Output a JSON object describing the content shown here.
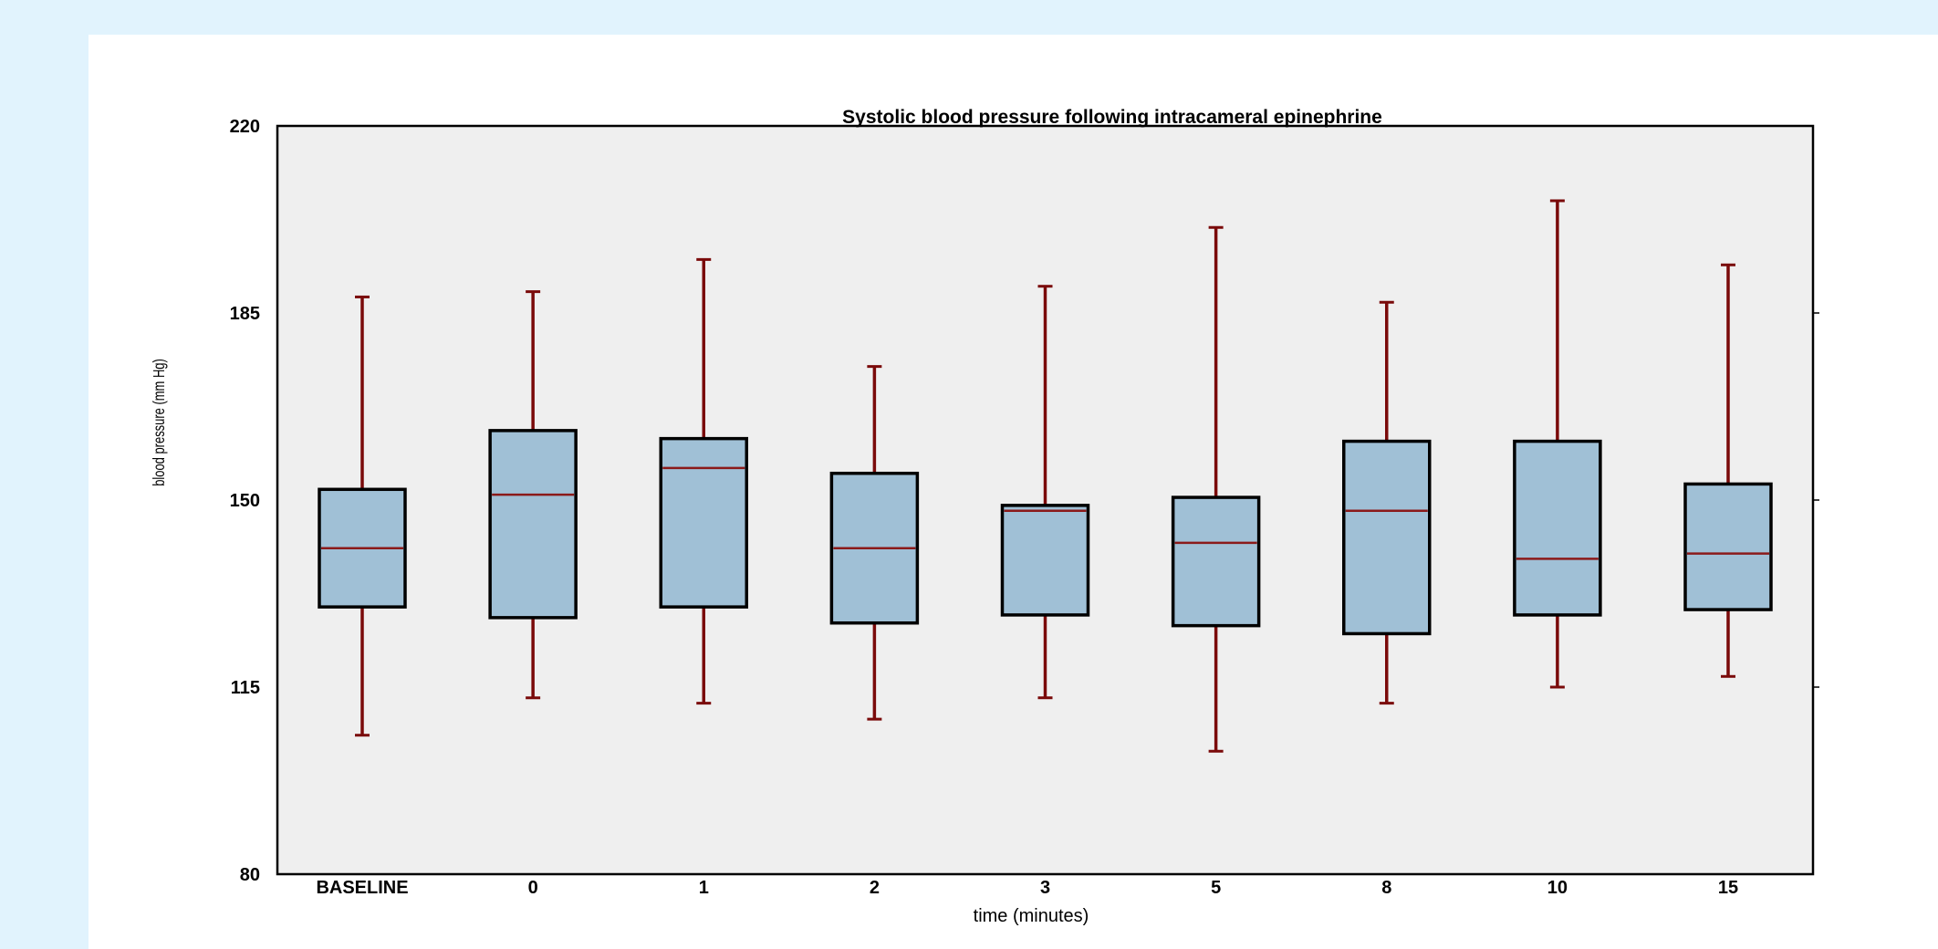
{
  "chart_data": {
    "type": "boxplot",
    "title": "Systolic blood pressure following intracameral epinephrine",
    "xlabel": "time (minutes)",
    "ylabel": "blood pressure (mm Hg)",
    "ylim": [
      80,
      220
    ],
    "yticks": [
      80,
      115,
      150,
      185,
      220
    ],
    "grid": false,
    "colors": {
      "box_fill": "#a0c0d6",
      "box_edge": "#000000",
      "whisker": "#7a0a0a",
      "median": "#8b1a1a",
      "plot_bg": "#efefef"
    },
    "categories": [
      "BASELINE",
      "0",
      "1",
      "2",
      "3",
      "5",
      "8",
      "10",
      "15"
    ],
    "boxes": [
      {
        "whisker_low": 106,
        "q1": 130,
        "median": 141,
        "q3": 152,
        "whisker_high": 188
      },
      {
        "whisker_low": 113,
        "q1": 128,
        "median": 151,
        "q3": 163,
        "whisker_high": 189
      },
      {
        "whisker_low": 112,
        "q1": 130,
        "median": 156,
        "q3": 161.5,
        "whisker_high": 195
      },
      {
        "whisker_low": 109,
        "q1": 127,
        "median": 141,
        "q3": 155,
        "whisker_high": 175
      },
      {
        "whisker_low": 113,
        "q1": 128.5,
        "median": 148,
        "q3": 149,
        "whisker_high": 190
      },
      {
        "whisker_low": 103,
        "q1": 126.5,
        "median": 142,
        "q3": 150.5,
        "whisker_high": 201
      },
      {
        "whisker_low": 112,
        "q1": 125,
        "median": 148,
        "q3": 161,
        "whisker_high": 187
      },
      {
        "whisker_low": 115,
        "q1": 128.5,
        "median": 139,
        "q3": 161,
        "whisker_high": 206
      },
      {
        "whisker_low": 117,
        "q1": 129.5,
        "median": 140,
        "q3": 153,
        "whisker_high": 194
      }
    ]
  }
}
